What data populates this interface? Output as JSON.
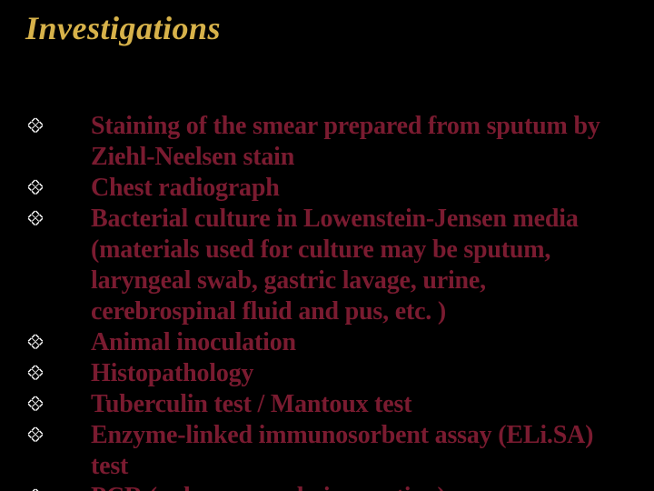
{
  "slide": {
    "title": "Investigations",
    "title_color": "#d7b24a",
    "text_color": "#7a1b30",
    "background_color": "#000000",
    "bullet_glyph": "❖",
    "items": [
      "Staining of the smear prepared from sputum by Ziehl-Neelsen stain",
      "Chest radiograph",
      "Bacterial culture in Lowenstein-Jensen media (materials used for culture may be sputum, laryngeal swab, gastric lavage, urine, cerebrospinal fluid and pus, etc. )",
      "Animal inoculation",
      "Histopathology",
      "Tuberculin test / Mantoux test",
      "Enzyme-linked immunosorbent assay (ELi.SA) test",
      "PCR (polymerase chain reaction)"
    ]
  }
}
